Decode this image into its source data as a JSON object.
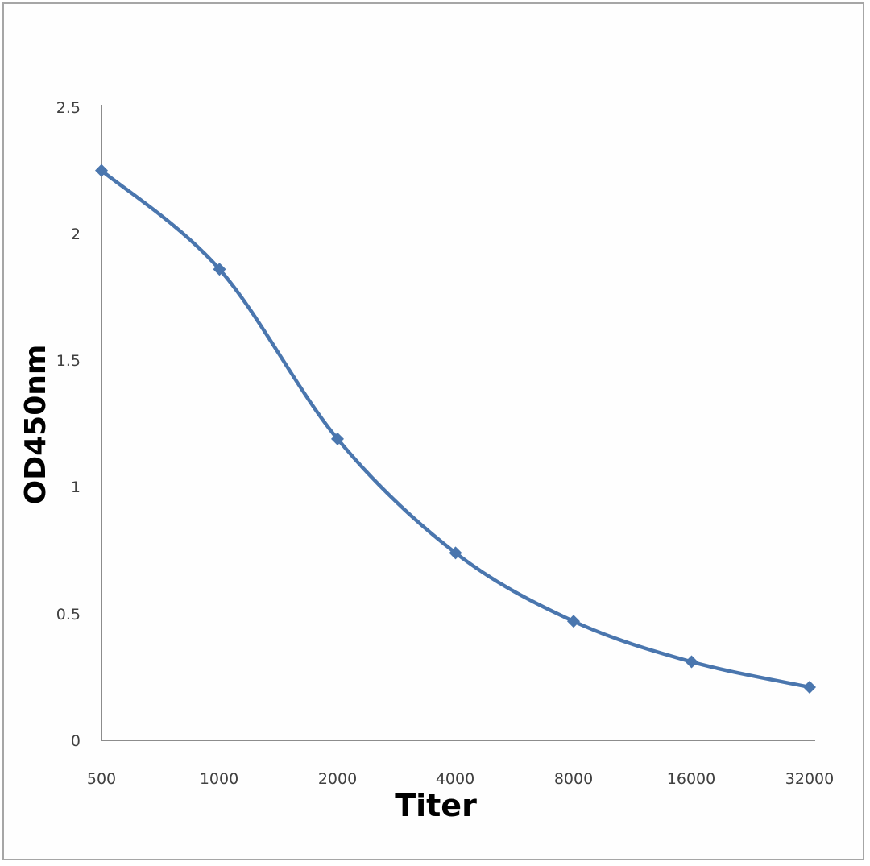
{
  "chart_data": {
    "type": "line",
    "title": "",
    "xlabel": "Titer",
    "ylabel": "OD450nm",
    "categories": [
      "500",
      "1000",
      "2000",
      "4000",
      "8000",
      "16000",
      "32000"
    ],
    "series": [
      {
        "name": "OD450nm",
        "values": [
          2.25,
          1.86,
          1.19,
          0.74,
          0.47,
          0.31,
          0.21
        ],
        "color": "#4a76ae",
        "marker": "diamond",
        "smooth": true
      }
    ],
    "ylim": [
      0,
      2.5
    ],
    "yticks": [
      "0",
      "0.5",
      "1",
      "1.5",
      "2",
      "2.5"
    ],
    "grid": false,
    "legend": null
  }
}
